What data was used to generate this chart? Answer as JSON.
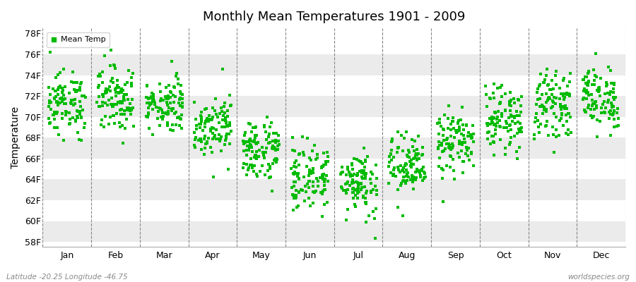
{
  "title": "Monthly Mean Temperatures 1901 - 2009",
  "ylabel": "Temperature",
  "xlabel_months": [
    "Jan",
    "Feb",
    "Mar",
    "Apr",
    "May",
    "Jun",
    "Jul",
    "Aug",
    "Sep",
    "Oct",
    "Nov",
    "Dec"
  ],
  "yticks": [
    58,
    60,
    62,
    64,
    66,
    68,
    70,
    72,
    74,
    76,
    78
  ],
  "ytick_labels": [
    "58F",
    "60F",
    "62F",
    "64F",
    "66F",
    "68F",
    "70F",
    "72F",
    "74F",
    "76F",
    "78F"
  ],
  "ylim": [
    57.5,
    78.5
  ],
  "dot_color": "#00bb00",
  "dot_size": 5,
  "legend_label": "Mean Temp",
  "footer_left": "Latitude -20.25 Longitude -46.75",
  "footer_right": "worldspecies.org",
  "background_color": "#ffffff",
  "band_color_light": "#ebebeb",
  "band_color_white": "#ffffff",
  "n_years": 109,
  "monthly_means": [
    71.3,
    71.8,
    71.2,
    69.2,
    66.8,
    64.2,
    63.8,
    65.2,
    67.5,
    69.8,
    71.2,
    71.8
  ],
  "monthly_stds": [
    1.5,
    1.6,
    1.3,
    1.4,
    1.5,
    1.6,
    1.6,
    1.5,
    1.5,
    1.5,
    1.5,
    1.5
  ],
  "seed": 12345
}
